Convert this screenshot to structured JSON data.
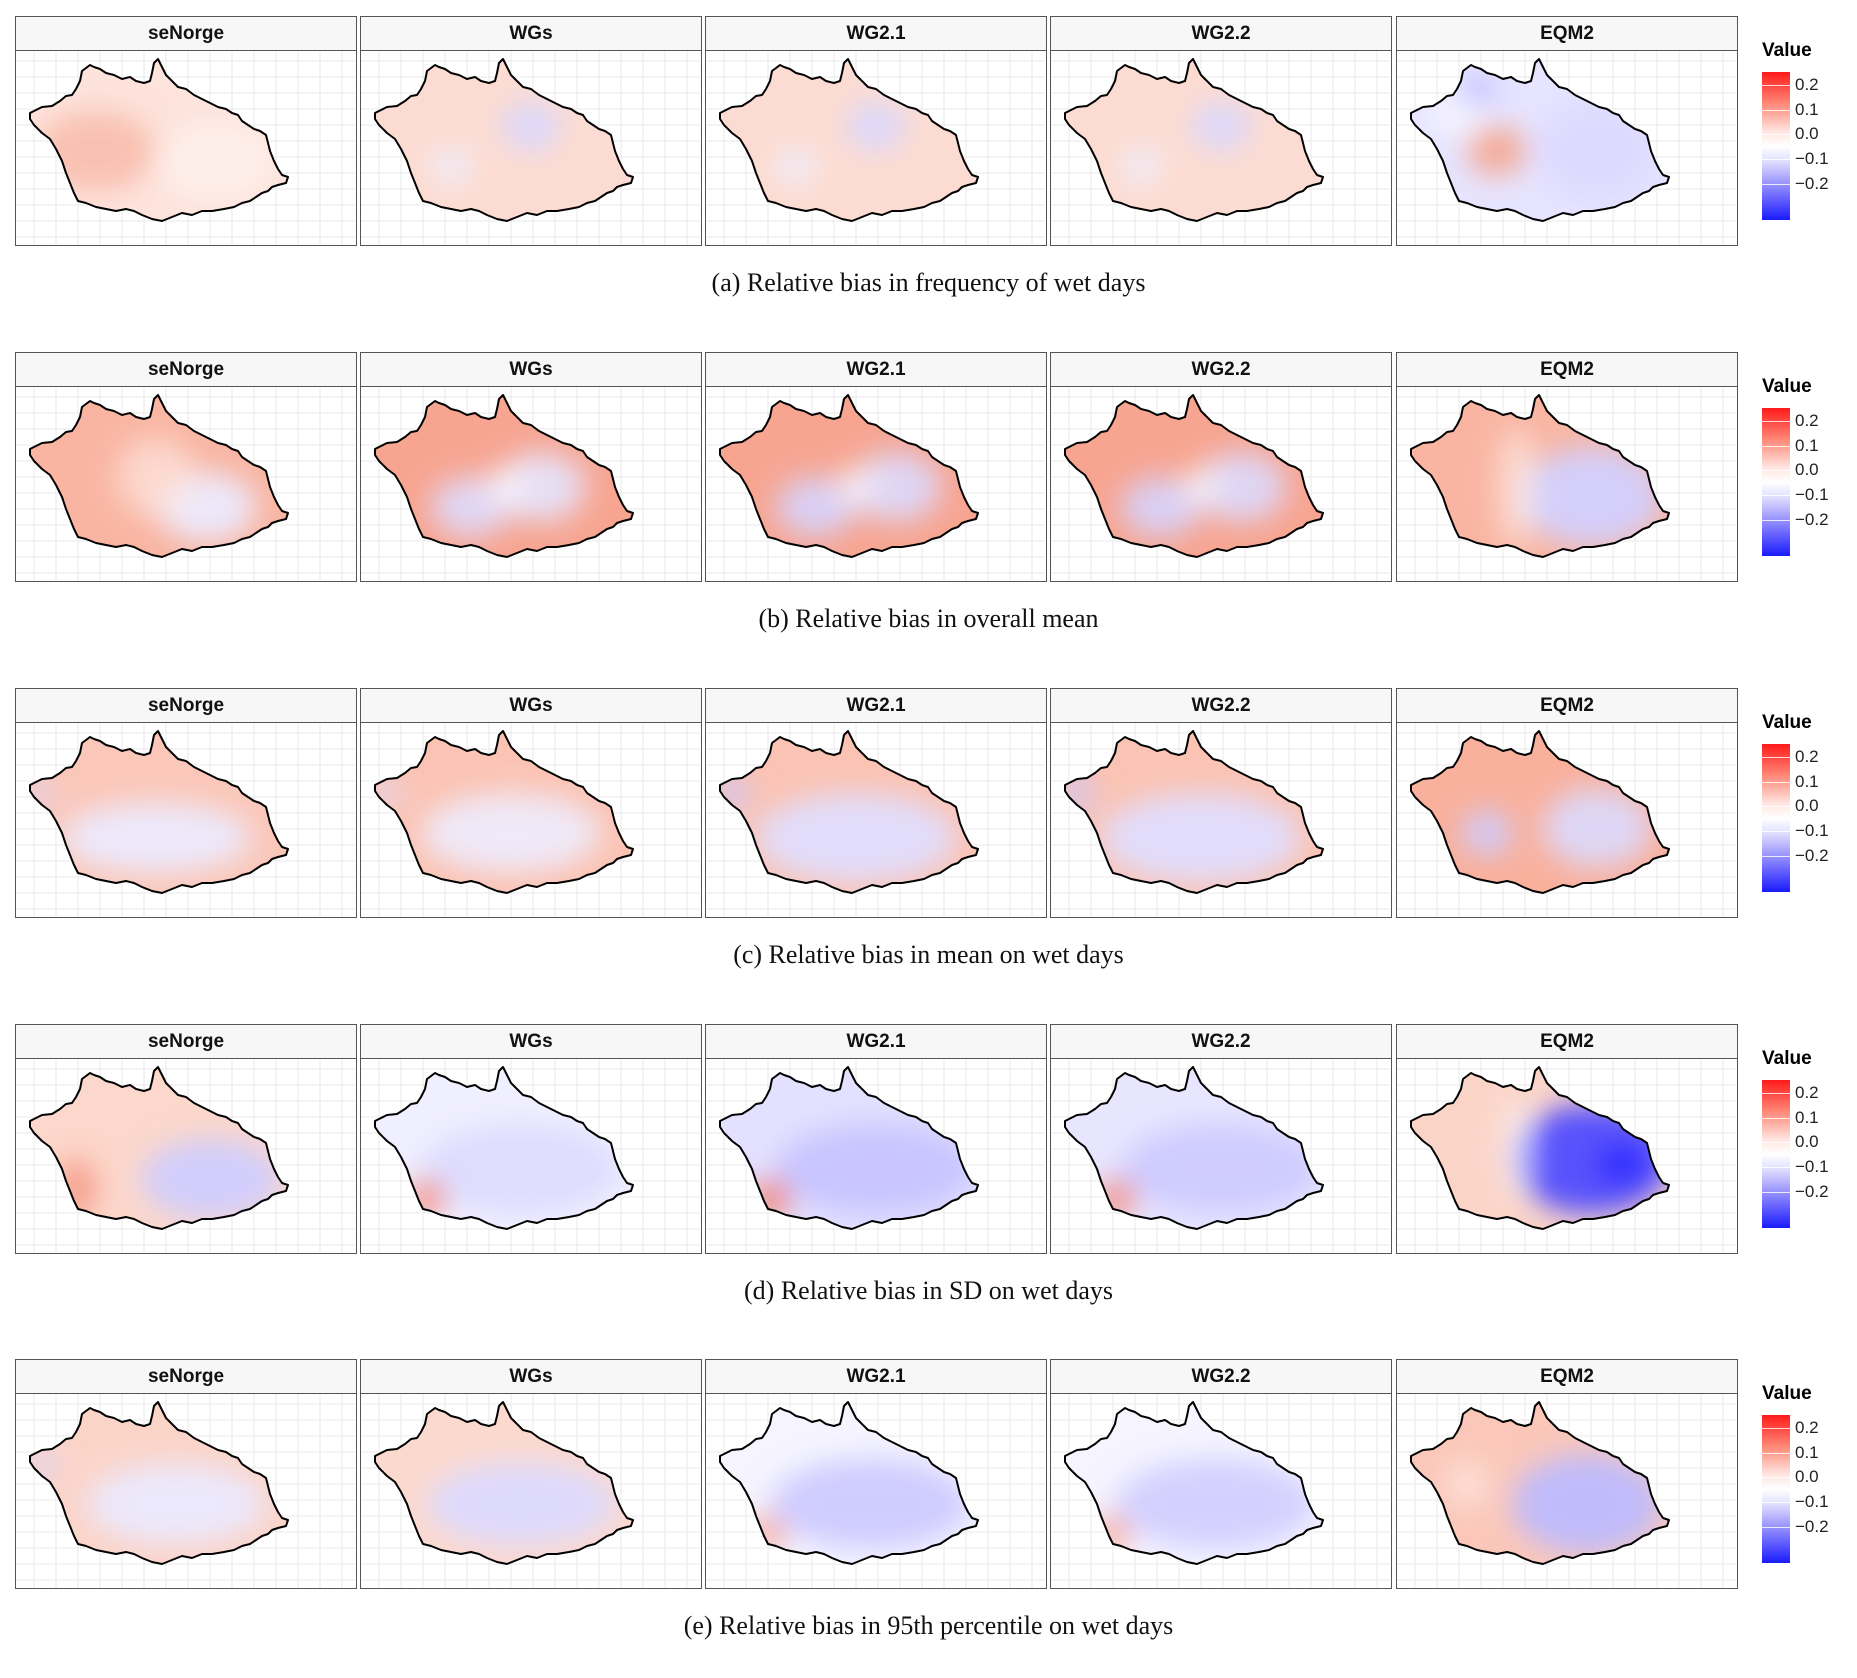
{
  "colors": {
    "positive": "#ff1a1a",
    "zero": "#ffffff",
    "negative": "#1a1aff",
    "panel_border": "#555555",
    "outline": "#000000"
  },
  "legend": {
    "title": "Value",
    "ticks": [
      "0.2",
      "0.1",
      "0.0",
      "−0.1",
      "−0.2"
    ],
    "range": [
      -0.25,
      0.25
    ]
  },
  "panels": [
    "seNorge",
    "WGs",
    "WG2.1",
    "WG2.2",
    "EQM2"
  ],
  "rows": [
    {
      "caption": "(a) Relative bias in frequency of wet days"
    },
    {
      "caption": "(b) Relative bias in overall mean"
    },
    {
      "caption": "(c) Relative bias in mean on wet days"
    },
    {
      "caption": "(d) Relative bias in SD on wet days"
    },
    {
      "caption": "(e) Relative bias in 95th percentile on wet days"
    }
  ]
}
